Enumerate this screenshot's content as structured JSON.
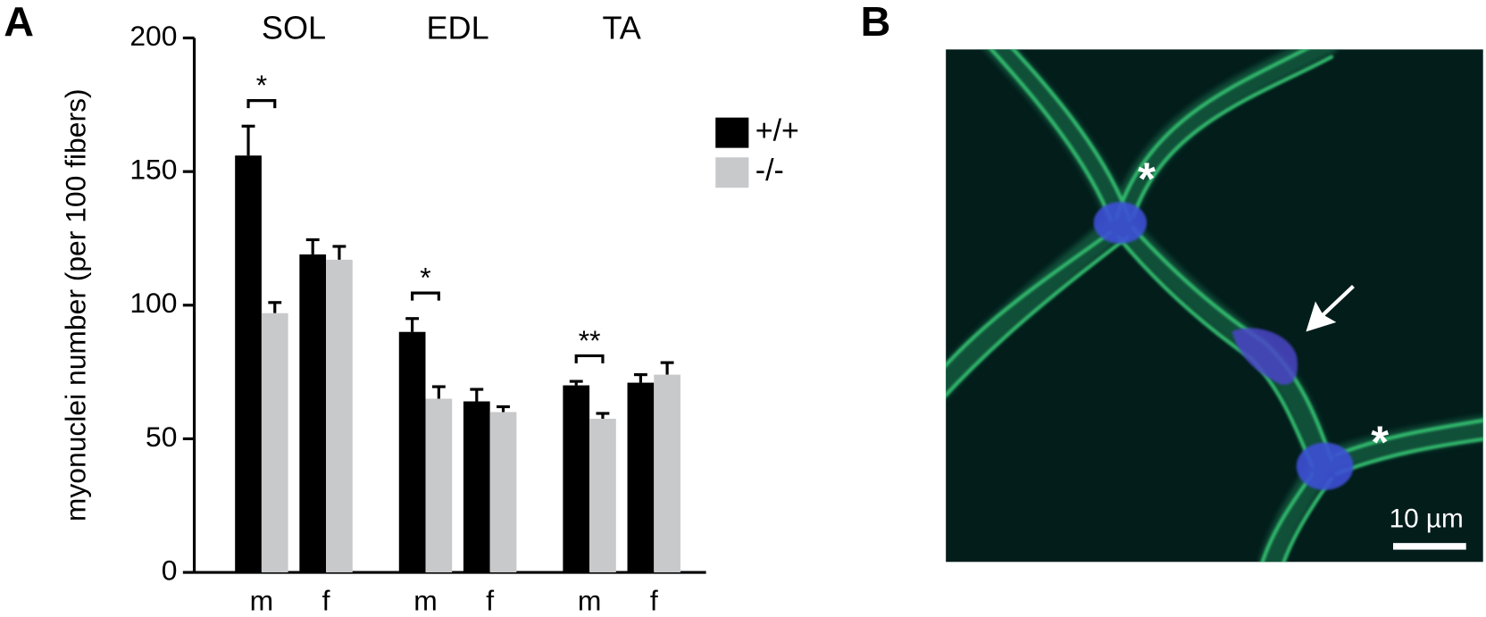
{
  "panels": {
    "a": "A",
    "b": "B"
  },
  "chart_data": {
    "type": "bar",
    "ylabel": "myonuclei number (per 100 fibers)",
    "groups": [
      "SOL",
      "EDL",
      "TA"
    ],
    "categories": [
      "m",
      "f",
      "m",
      "f",
      "m",
      "f"
    ],
    "series": [
      {
        "name": "+/+",
        "color": "#000000",
        "values": [
          156,
          119,
          90,
          64,
          70,
          71
        ],
        "errors": [
          11,
          5.5,
          5,
          4.5,
          1.5,
          3
        ]
      },
      {
        "name": "-/-",
        "color": "#c8c9cb",
        "values": [
          97,
          117,
          65,
          60,
          57.5,
          74
        ],
        "errors": [
          4,
          5,
          4.5,
          2,
          2,
          4.5
        ]
      }
    ],
    "significance": [
      "*",
      null,
      "*",
      null,
      "**",
      null
    ],
    "ylim": [
      0,
      200
    ],
    "yticks": [
      0,
      50,
      100,
      150,
      200
    ],
    "legend": "upper right"
  },
  "image": {
    "scale_bar": "10 µm"
  }
}
